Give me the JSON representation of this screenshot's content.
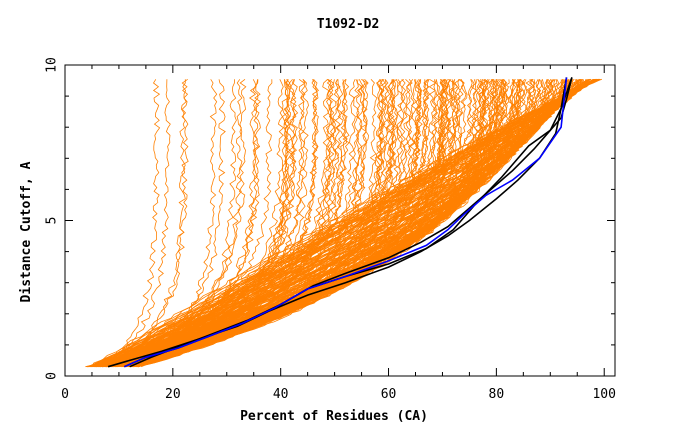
{
  "chart_data": {
    "type": "line",
    "title": "T1092-D2",
    "xlabel": "Percent of Residues (CA)",
    "ylabel": "Distance Cutoff, A",
    "xlim": [
      0,
      102
    ],
    "ylim": [
      0,
      10
    ],
    "x_ticks": [
      "0",
      "20",
      "40",
      "60",
      "80",
      "100"
    ],
    "y_ticks": [
      "0",
      "5",
      "10"
    ],
    "grid": false,
    "legend": "none",
    "colors": {
      "models": "#ff8000",
      "highlight_black": "#000000",
      "highlight_blue": "#0000ff"
    },
    "series": [
      {
        "color": "#000000",
        "x": [
          8,
          12,
          18,
          25,
          32,
          38,
          45,
          52,
          60,
          66,
          71,
          75,
          80,
          84,
          88,
          91,
          92,
          93
        ],
        "y": [
          0.3,
          0.5,
          0.8,
          1.2,
          1.6,
          2.1,
          2.6,
          3.0,
          3.5,
          4.0,
          4.5,
          5.0,
          5.7,
          6.3,
          7.0,
          7.8,
          8.6,
          9.6
        ]
      },
      {
        "color": "#000000",
        "x": [
          12,
          16,
          22,
          28,
          34,
          40,
          46,
          52,
          60,
          66,
          71,
          75,
          79,
          83,
          87,
          90,
          92,
          94
        ],
        "y": [
          0.3,
          0.6,
          1.0,
          1.4,
          1.8,
          2.3,
          2.9,
          3.3,
          3.8,
          4.3,
          4.8,
          5.4,
          6.0,
          6.6,
          7.3,
          7.9,
          8.6,
          9.6
        ]
      },
      {
        "color": "#000000",
        "x": [
          11,
          15,
          21,
          27,
          33,
          39,
          45,
          52,
          60,
          67,
          72,
          76,
          81,
          86,
          90,
          92,
          93,
          94
        ],
        "y": [
          0.3,
          0.6,
          0.9,
          1.3,
          1.7,
          2.2,
          2.8,
          3.2,
          3.6,
          4.1,
          4.7,
          5.5,
          6.4,
          7.4,
          7.9,
          8.3,
          8.9,
          9.6
        ]
      },
      {
        "color": "#0000ff",
        "x": [
          11,
          15,
          21,
          27,
          33,
          39,
          45,
          52,
          60,
          67,
          71,
          74,
          78,
          83,
          88,
          92,
          92.5,
          93
        ],
        "y": [
          0.3,
          0.6,
          0.9,
          1.3,
          1.7,
          2.2,
          2.8,
          3.2,
          3.7,
          4.2,
          4.7,
          5.2,
          5.8,
          6.3,
          7.0,
          8.0,
          8.8,
          9.6
        ]
      }
    ]
  }
}
